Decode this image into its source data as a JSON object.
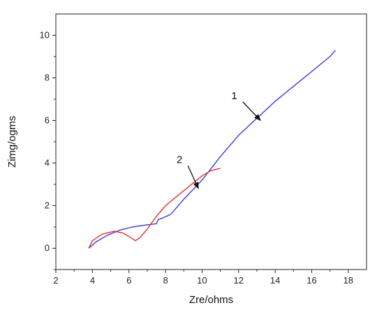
{
  "chart_data": {
    "type": "line",
    "title": "",
    "xlabel": "Zre/ohms",
    "ylabel": "Zimg/ogms",
    "xlim": [
      2,
      19
    ],
    "ylim": [
      -1,
      11
    ],
    "xticks": [
      2,
      4,
      6,
      8,
      10,
      12,
      14,
      16,
      18
    ],
    "yticks": [
      0,
      2,
      4,
      6,
      8,
      10
    ],
    "grid": false,
    "legend": "none",
    "series": [
      {
        "color": "#3b3bdc",
        "points": [
          [
            3.8,
            0.0
          ],
          [
            4.2,
            0.3
          ],
          [
            4.8,
            0.6
          ],
          [
            5.5,
            0.85
          ],
          [
            6.2,
            1.0
          ],
          [
            7.0,
            1.1
          ],
          [
            7.5,
            1.15
          ],
          [
            7.6,
            1.35
          ],
          [
            7.8,
            1.4
          ],
          [
            8.3,
            1.6
          ],
          [
            9.0,
            2.3
          ],
          [
            10.0,
            3.2
          ],
          [
            11.0,
            4.3
          ],
          [
            12.0,
            5.3
          ],
          [
            13.0,
            6.1
          ],
          [
            14.0,
            6.9
          ],
          [
            15.0,
            7.6
          ],
          [
            16.0,
            8.3
          ],
          [
            17.0,
            9.0
          ],
          [
            17.3,
            9.3
          ]
        ]
      },
      {
        "color": "#e0302a",
        "points": [
          [
            3.8,
            0.0
          ],
          [
            4.0,
            0.35
          ],
          [
            4.5,
            0.65
          ],
          [
            5.2,
            0.8
          ],
          [
            5.7,
            0.7
          ],
          [
            6.1,
            0.5
          ],
          [
            6.35,
            0.35
          ],
          [
            6.6,
            0.5
          ],
          [
            7.0,
            0.9
          ],
          [
            7.5,
            1.5
          ],
          [
            8.0,
            2.0
          ],
          [
            9.0,
            2.7
          ],
          [
            10.0,
            3.4
          ],
          [
            10.5,
            3.65
          ],
          [
            11.0,
            3.75
          ]
        ]
      }
    ],
    "annotations": [
      {
        "label": "1",
        "text_at": [
          12.0,
          7.0
        ],
        "arrow_to": [
          13.2,
          6.0
        ]
      },
      {
        "label": "2",
        "text_at": [
          9.0,
          4.0
        ],
        "arrow_to": [
          9.8,
          2.8
        ]
      }
    ]
  }
}
